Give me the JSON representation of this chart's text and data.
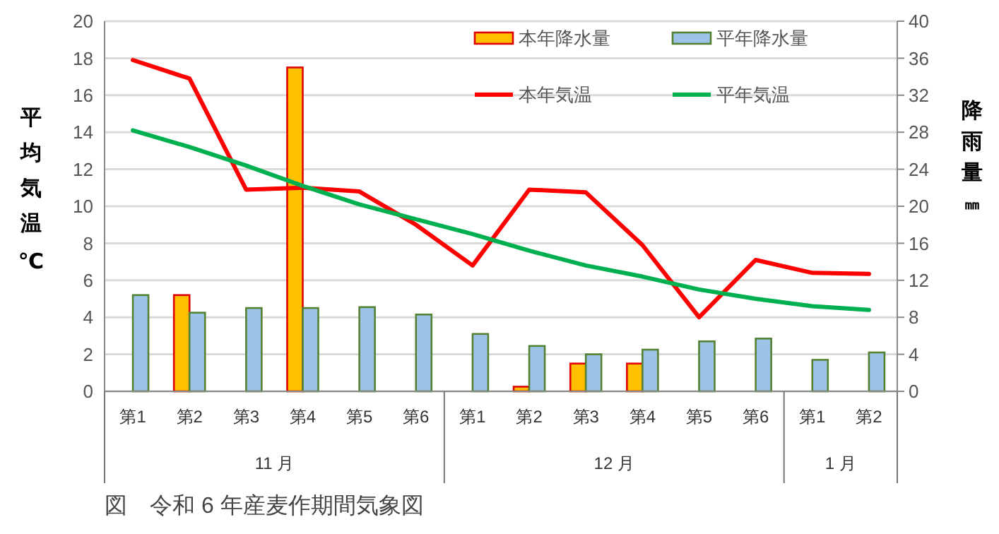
{
  "chart_data": {
    "type": "bar",
    "ylabel": "平均気温℃",
    "y2label": "降雨量㎜",
    "categories": [
      "第1",
      "第2",
      "第3",
      "第4",
      "第5",
      "第6",
      "第1",
      "第2",
      "第3",
      "第4",
      "第5",
      "第6",
      "第1",
      "第2"
    ],
    "series": [
      {
        "name": "本年降水量",
        "axis": "y2",
        "color": "#ffc000",
        "values": [
          0,
          10.4,
          0,
          35,
          0,
          0,
          0,
          0.5,
          3,
          3,
          0,
          0,
          0,
          0
        ]
      },
      {
        "name": "平年降水量",
        "axis": "y2",
        "color": "#9dc3e6",
        "values": [
          10.4,
          8.5,
          9,
          9,
          9.1,
          8.3,
          6.2,
          4.9,
          4,
          4.5,
          5.4,
          5.7,
          3.4,
          4.2
        ]
      },
      {
        "name": "本年気温",
        "type": "line",
        "color": "#ff0000",
        "values": [
          17.9,
          16.9,
          10.9,
          11,
          10.8,
          9,
          6.8,
          10.9,
          10.75,
          7.9,
          4,
          7.1,
          6.4,
          6.35
        ]
      },
      {
        "name": "平年気温",
        "type": "line",
        "color": "#00b050",
        "values": [
          14.1,
          13.2,
          12.2,
          11.1,
          10.1,
          9.3,
          8.5,
          7.6,
          6.8,
          6.2,
          5.5,
          5,
          4.6,
          4.4
        ]
      }
    ],
    "ylim": [
      0,
      20
    ],
    "yticks": [
      0,
      2,
      4,
      6,
      8,
      10,
      12,
      14,
      16,
      18,
      20
    ],
    "y2lim": [
      0,
      40
    ],
    "y2ticks": [
      0,
      4,
      8,
      12,
      16,
      20,
      24,
      28,
      32,
      36,
      40
    ],
    "grid": "y",
    "legend": "top right",
    "annotations": [
      "11 月",
      "12 月",
      "1 月",
      "図　令和 6 年産麦作期間気象図"
    ]
  }
}
